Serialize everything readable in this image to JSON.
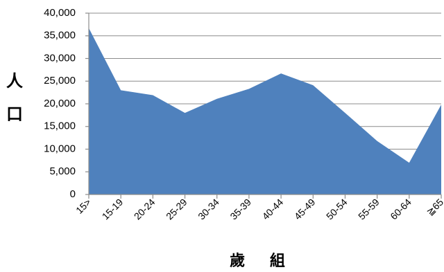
{
  "chart_data": {
    "type": "area",
    "categories": [
      "15>",
      "15-19",
      "20-24",
      "25-29",
      "30-34",
      "35-39",
      "40-44",
      "45-49",
      "50-54",
      "55-59",
      "60-64",
      "≧65"
    ],
    "series": [
      {
        "values": [
          36700,
          23000,
          21900,
          18000,
          21100,
          23300,
          26700,
          24100,
          18000,
          11800,
          7000,
          19800
        ]
      }
    ],
    "title": "",
    "xlabel": "歲 組",
    "ylabel": "人口",
    "ylim": [
      0,
      40000
    ],
    "yticks": [
      0,
      5000,
      10000,
      15000,
      20000,
      25000,
      30000,
      35000,
      40000
    ],
    "ytick_labels": [
      "0",
      "5,000",
      "10,000",
      "15,000",
      "20,000",
      "25,000",
      "30,000",
      "35,000",
      "40,000"
    ],
    "grid": true,
    "legend": "none",
    "fill_color": "#4f81bd"
  }
}
